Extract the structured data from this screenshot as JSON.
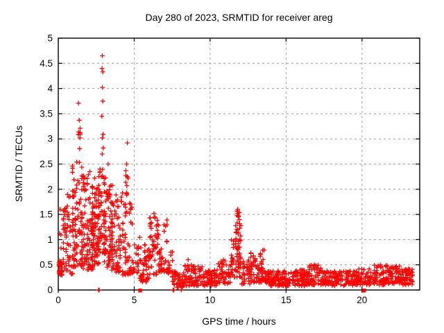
{
  "chart_data": {
    "type": "scatter",
    "title": "Day 280 of 2023, SRMTID for receiver areg",
    "xlabel": "GPS time / hours",
    "ylabel": "SRMTID / TECUs",
    "xlim": [
      0,
      23.8
    ],
    "ylim": [
      0,
      5
    ],
    "xticks": [
      0,
      5,
      10,
      15,
      20
    ],
    "yticks": [
      0,
      0.5,
      1,
      1.5,
      2,
      2.5,
      3,
      3.5,
      4,
      4.5,
      5
    ],
    "grid": true,
    "legend": "none",
    "marker": "plus",
    "marker_color": "#ff0000",
    "grid_color": "#9e9e9e",
    "border_color": "#000000",
    "seed": 280,
    "point_bands": [
      [
        0.02,
        0.28,
        30,
        0.28,
        0.55,
        1.0
      ],
      [
        0.05,
        0.55,
        14,
        0.5,
        1.65,
        1.2
      ],
      [
        0.3,
        1.0,
        55,
        0.3,
        1.9,
        1.5
      ],
      [
        0.9,
        1.6,
        90,
        0.45,
        2.6,
        1.6
      ],
      [
        1.28,
        1.47,
        9,
        2.8,
        3.25,
        1.0
      ],
      [
        1.6,
        2.3,
        95,
        0.4,
        2.4,
        1.6
      ],
      [
        2.2,
        2.7,
        75,
        0.5,
        2.3,
        1.5
      ],
      [
        2.6,
        3.15,
        60,
        0.7,
        2.45,
        1.3
      ],
      [
        3.0,
        3.6,
        70,
        0.45,
        2.15,
        1.5
      ],
      [
        3.5,
        4.2,
        65,
        0.35,
        1.95,
        1.5
      ],
      [
        4.2,
        4.9,
        55,
        0.3,
        2.0,
        1.6
      ],
      [
        4.4,
        4.65,
        6,
        2.0,
        2.55,
        1.0
      ],
      [
        4.9,
        5.4,
        22,
        0.2,
        1.1,
        1.4
      ],
      [
        5.4,
        6.0,
        45,
        0.15,
        0.9,
        1.4
      ],
      [
        6.0,
        6.65,
        55,
        0.3,
        1.5,
        1.3
      ],
      [
        6.65,
        7.2,
        32,
        0.35,
        1.45,
        1.3
      ],
      [
        7.2,
        7.55,
        16,
        0.25,
        0.8,
        1.2
      ],
      [
        7.5,
        8.3,
        45,
        0.05,
        0.38,
        1.1
      ],
      [
        8.3,
        9.6,
        80,
        0.08,
        0.5,
        1.4
      ],
      [
        9.6,
        10.5,
        60,
        0.08,
        0.4,
        1.3
      ],
      [
        10.5,
        11.35,
        45,
        0.12,
        0.6,
        1.5
      ],
      [
        11.35,
        11.65,
        22,
        0.2,
        1.0,
        1.4
      ],
      [
        11.65,
        12.05,
        55,
        0.25,
        1.58,
        1.25
      ],
      [
        12.05,
        12.65,
        35,
        0.12,
        0.6,
        1.3
      ],
      [
        12.65,
        13.6,
        65,
        0.15,
        0.8,
        1.5
      ],
      [
        13.6,
        14.6,
        75,
        0.08,
        0.38,
        1.2
      ],
      [
        14.6,
        16.5,
        130,
        0.08,
        0.4,
        1.3
      ],
      [
        16.5,
        17.4,
        55,
        0.1,
        0.5,
        1.4
      ],
      [
        17.4,
        19.5,
        130,
        0.08,
        0.38,
        1.2
      ],
      [
        19.5,
        20.6,
        70,
        0.1,
        0.42,
        1.3
      ],
      [
        20.6,
        21.7,
        75,
        0.1,
        0.5,
        1.4
      ],
      [
        21.7,
        22.5,
        55,
        0.12,
        0.48,
        1.3
      ],
      [
        22.5,
        23.35,
        60,
        0.1,
        0.42,
        1.3
      ]
    ],
    "notable_points": [
      [
        1.33,
        3.71
      ],
      [
        1.38,
        3.37
      ],
      [
        2.9,
        4.65
      ],
      [
        2.88,
        4.4
      ],
      [
        2.93,
        4.33
      ],
      [
        2.9,
        4.02
      ],
      [
        2.93,
        3.75
      ],
      [
        2.87,
        3.45
      ],
      [
        2.95,
        3.09
      ],
      [
        2.9,
        3.02
      ],
      [
        2.96,
        2.82
      ],
      [
        2.89,
        2.7
      ],
      [
        3.28,
        2.5
      ],
      [
        4.55,
        2.92
      ],
      [
        4.5,
        2.5
      ],
      [
        6.3,
        1.52
      ],
      [
        6.35,
        1.45
      ],
      [
        11.82,
        1.6
      ],
      [
        11.8,
        1.52
      ],
      [
        11.86,
        1.47
      ],
      [
        8.55,
        0.6
      ],
      [
        0.12,
        1.6
      ],
      [
        16.85,
        0.5
      ],
      [
        21.2,
        0.5
      ]
    ],
    "zero_value_points": [
      [
        2.65,
        0
      ],
      [
        2.7,
        0
      ],
      [
        7.55,
        0
      ],
      [
        7.6,
        0
      ],
      [
        8.1,
        0
      ]
    ],
    "zero_value_squares": [
      [
        5.38,
        0
      ],
      [
        20.12,
        0
      ]
    ]
  }
}
